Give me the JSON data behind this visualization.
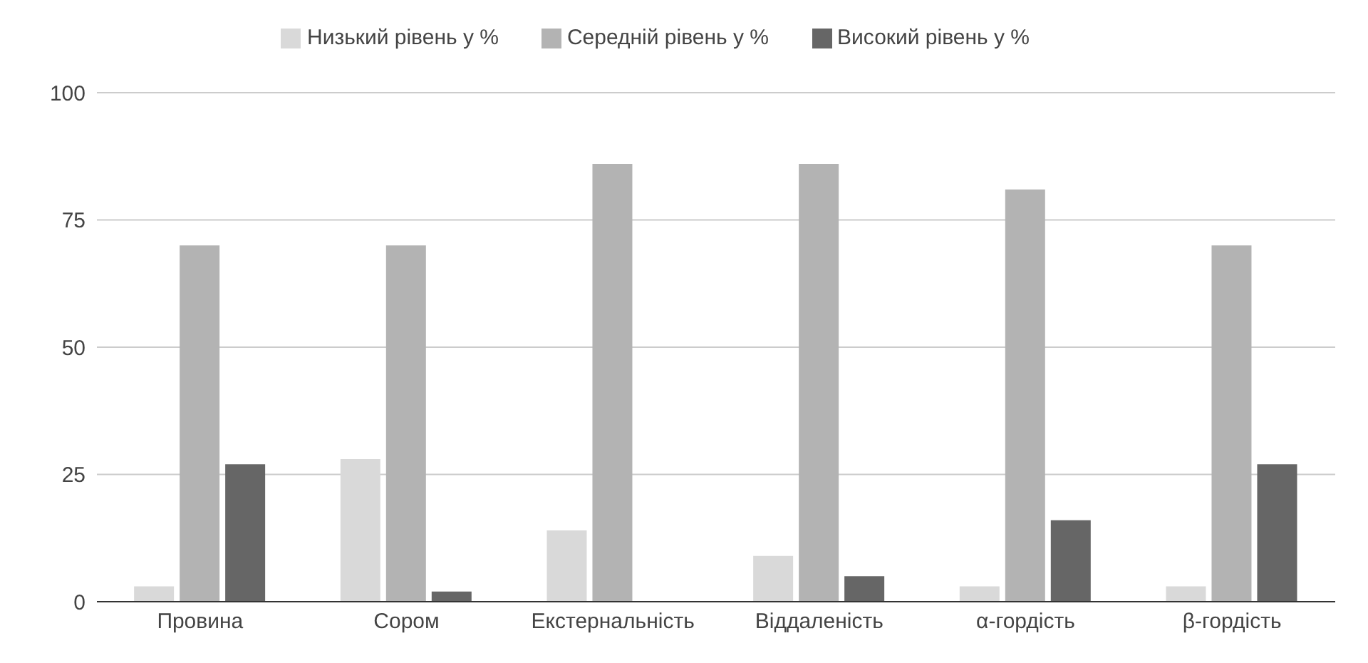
{
  "chart_data": {
    "type": "bar",
    "categories": [
      "Провина",
      "Сором",
      "Екстернальність",
      "Віддаленість",
      "α-гордість",
      "β-гордість"
    ],
    "series": [
      {
        "name": "Низький рівень у %",
        "color": "#d9d9d9",
        "values": [
          3,
          28,
          14,
          9,
          3,
          3
        ]
      },
      {
        "name": "Середній рівень у %",
        "color": "#b3b3b3",
        "values": [
          70,
          70,
          86,
          86,
          81,
          70
        ]
      },
      {
        "name": "Високий рівень у %",
        "color": "#666666",
        "values": [
          27,
          2,
          0,
          5,
          16,
          27
        ]
      }
    ],
    "ylim": [
      0,
      100
    ],
    "yticks": [
      0,
      25,
      50,
      75,
      100
    ],
    "grid": "y",
    "legend": "top"
  }
}
